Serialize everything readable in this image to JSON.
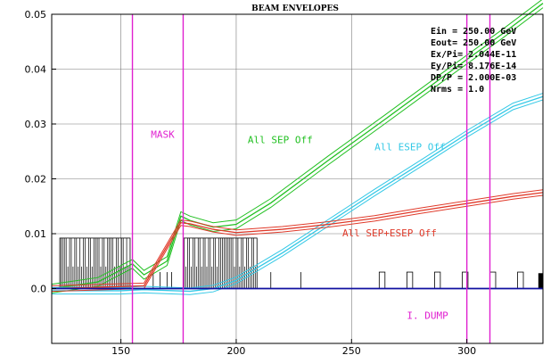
{
  "chart_data": {
    "type": "line",
    "title": "BEAM ENVELOPES",
    "xlim": [
      120,
      333
    ],
    "ylim": [
      -0.01,
      0.05
    ],
    "x_ticks": [
      150,
      200,
      250,
      300
    ],
    "x_tick_labels": [
      "150",
      "200",
      "250",
      "300"
    ],
    "y_ticks": [
      0.0,
      0.01,
      0.02,
      0.03,
      0.04,
      0.05
    ],
    "y_tick_labels": [
      "0.0",
      "0.01",
      "0.02",
      "0.03",
      "0.04",
      "0.05"
    ],
    "grid": true,
    "info_box": [
      "Ein  =   250.00 GeV",
      "Eout=   250.00 GeV",
      "Ex/Pi=   2.044E-11",
      "Ey/Pi=   8.176E-14",
      "DP/P  =   2.000E-03",
      "Nrms = 1.0"
    ],
    "series": [
      {
        "name": "All SEP Off",
        "color": "#22c022",
        "x": [
          120,
          140,
          155,
          160,
          170,
          176,
          180,
          190,
          200,
          215,
          240,
          265,
          290,
          315,
          333
        ],
        "y": [
          0.0,
          0.0012,
          0.0045,
          0.0025,
          0.005,
          0.0132,
          0.0124,
          0.0112,
          0.0117,
          0.0156,
          0.0234,
          0.031,
          0.0387,
          0.0463,
          0.052
        ],
        "band": 0.0008
      },
      {
        "name": "All ESEP Off",
        "color": "#33c8e6",
        "x": [
          120,
          150,
          160,
          180,
          190,
          200,
          210,
          220,
          240,
          260,
          280,
          300,
          320,
          333
        ],
        "y": [
          -0.0004,
          -0.0004,
          -0.0002,
          -0.0005,
          0.0,
          0.0015,
          0.004,
          0.0065,
          0.012,
          0.0175,
          0.0228,
          0.0282,
          0.0332,
          0.035
        ],
        "band": 0.0006
      },
      {
        "name": "All SEP+ESEP Off",
        "color": "#e03a2a",
        "x": [
          120,
          160,
          176,
          180,
          190,
          200,
          220,
          240,
          260,
          280,
          300,
          320,
          333
        ],
        "y": [
          0.0,
          0.0005,
          0.012,
          0.0118,
          0.0108,
          0.0102,
          0.0108,
          0.0117,
          0.0128,
          0.0142,
          0.0155,
          0.0168,
          0.0175
        ],
        "band": 0.0005
      }
    ],
    "annotations": [
      {
        "text": "MASK",
        "x": 163,
        "y": 0.0275,
        "color": "#e020d0"
      },
      {
        "text": "All SEP Off",
        "x": 205,
        "y": 0.0265,
        "color": "#22c022"
      },
      {
        "text": "All ESEP Off",
        "x": 260,
        "y": 0.0252,
        "color": "#33c8e6"
      },
      {
        "text": "All SEP+ESEP Off",
        "x": 246,
        "y": 0.0095,
        "color": "#e03a2a"
      },
      {
        "text": "I. DUMP",
        "x": 274,
        "y": -0.0055,
        "color": "#e020d0"
      }
    ],
    "markers": [
      {
        "x": 155,
        "color": "#e020d0"
      },
      {
        "x": 177,
        "color": "#e020d0"
      },
      {
        "x": 300,
        "color": "#e020d0"
      },
      {
        "x": 310,
        "color": "#e020d0"
      }
    ],
    "baseline_color": "#1010a0",
    "axis_color": "#000000",
    "grid_color": "#7a7a7a"
  }
}
